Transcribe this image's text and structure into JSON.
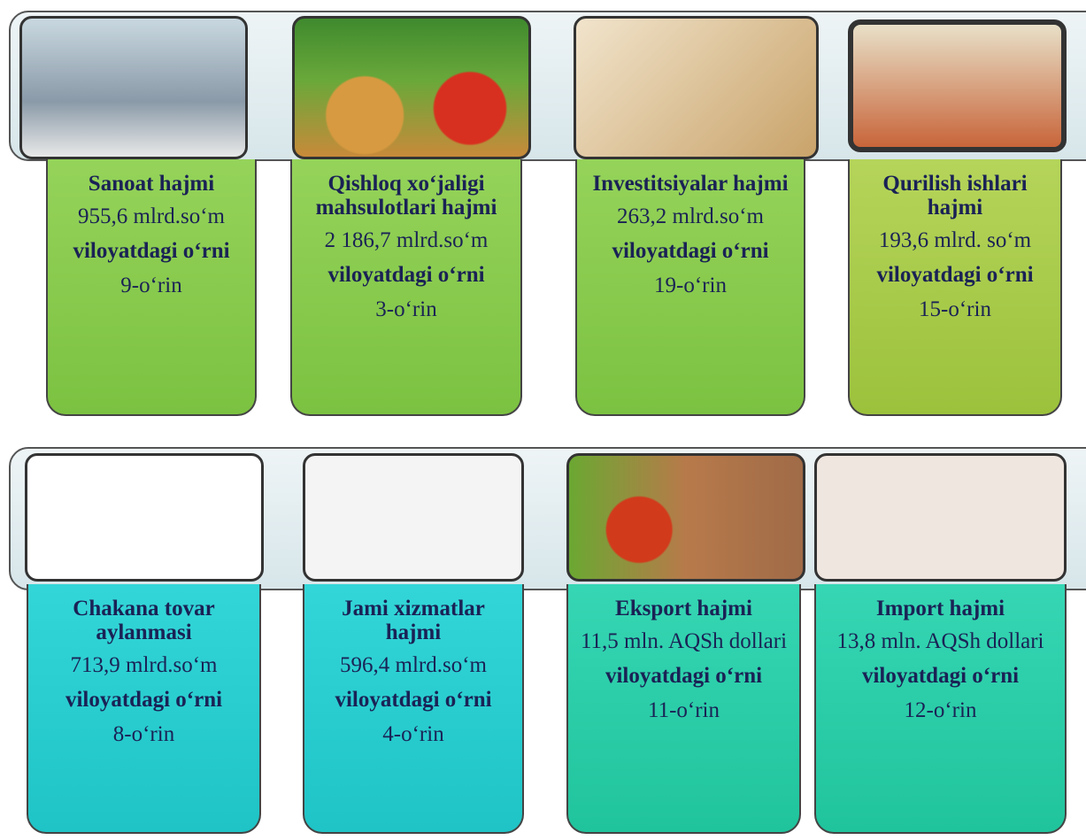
{
  "rows": [
    {
      "cards": [
        {
          "title": "Sanoat hajmi",
          "value": "955,6 mlrd.so‘m",
          "rank_label": "viloyatdagi o‘rni",
          "rank": "9-o‘rin"
        },
        {
          "title": "Qishloq xo‘jaligi mahsulotlari hajmi",
          "value": "2 186,7 mlrd.so‘m",
          "rank_label": "viloyatdagi o‘rni",
          "rank": "3-o‘rin"
        },
        {
          "title": "Investitsiyalar hajmi",
          "value": "263,2 mlrd.so‘m",
          "rank_label": "viloyatdagi o‘rni",
          "rank": "19-o‘rin"
        },
        {
          "title": "Qurilish ishlari hajmi",
          "value": "193,6 mlrd. so‘m",
          "rank_label": "viloyatdagi o‘rni",
          "rank": "15-o‘rin"
        }
      ]
    },
    {
      "cards": [
        {
          "title": "Chakana tovar aylanmasi",
          "value": "713,9 mlrd.so‘m",
          "rank_label": "viloyatdagi o‘rni",
          "rank": "8-o‘rin"
        },
        {
          "title": "Jami xizmatlar hajmi",
          "value": "596,4 mlrd.so‘m",
          "rank_label": "viloyatdagi o‘rni",
          "rank": "4-o‘rin"
        },
        {
          "title": "Eksport hajmi",
          "value": "11,5 mln. AQSh dollari",
          "rank_label": "viloyatdagi o‘rni",
          "rank": "11-o‘rin"
        },
        {
          "title": "Import hajmi",
          "value": "13,8 mln. AQSh dollari",
          "rank_label": "viloyatdagi o‘rni",
          "rank": "12-o‘rin"
        }
      ]
    }
  ]
}
